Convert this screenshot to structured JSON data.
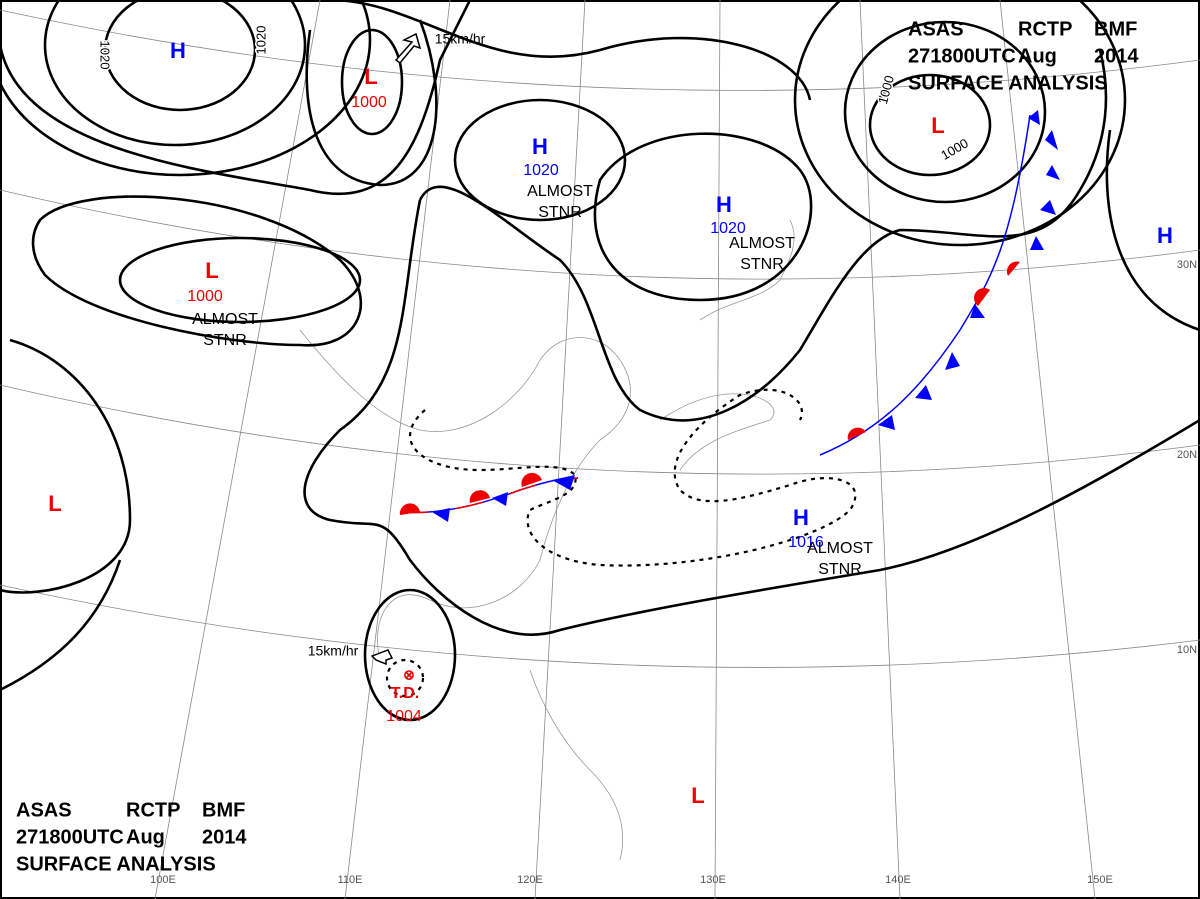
{
  "header": {
    "line1": [
      "ASAS",
      "RCTP",
      "BMF"
    ],
    "line2": [
      "271800UTC",
      "Aug",
      "2014"
    ],
    "line3": "SURFACE ANALYSIS"
  },
  "systems": [
    {
      "symbol": "H"
    },
    {
      "symbol": "L",
      "pressure": 1000
    },
    {
      "symbol": "H",
      "pressure": 1020,
      "note": [
        "ALMOST",
        "STNR"
      ]
    },
    {
      "symbol": "L",
      "pressure": 1000,
      "note": [
        "ALMOST",
        "STNR"
      ]
    },
    {
      "symbol": "H",
      "pressure": 1020,
      "note": [
        "ALMOST",
        "STNR"
      ]
    },
    {
      "symbol": "L"
    },
    {
      "symbol": "H"
    },
    {
      "symbol": "L"
    },
    {
      "symbol": "H",
      "pressure": 1016,
      "note": [
        "ALMOST",
        "STNR"
      ]
    },
    {
      "symbol": "T.D.",
      "pressure": 1004
    },
    {
      "symbol": "L"
    }
  ],
  "isobar_labels": [
    "1020",
    "1020",
    "1000",
    "1000"
  ],
  "motion_labels": [
    "15km/hr",
    "15km/hr"
  ],
  "latitude_labels": [
    "30N",
    "20N",
    "10N"
  ],
  "longitude_labels": [
    "100E",
    "110E",
    "120E",
    "130E",
    "140E",
    "150E"
  ]
}
